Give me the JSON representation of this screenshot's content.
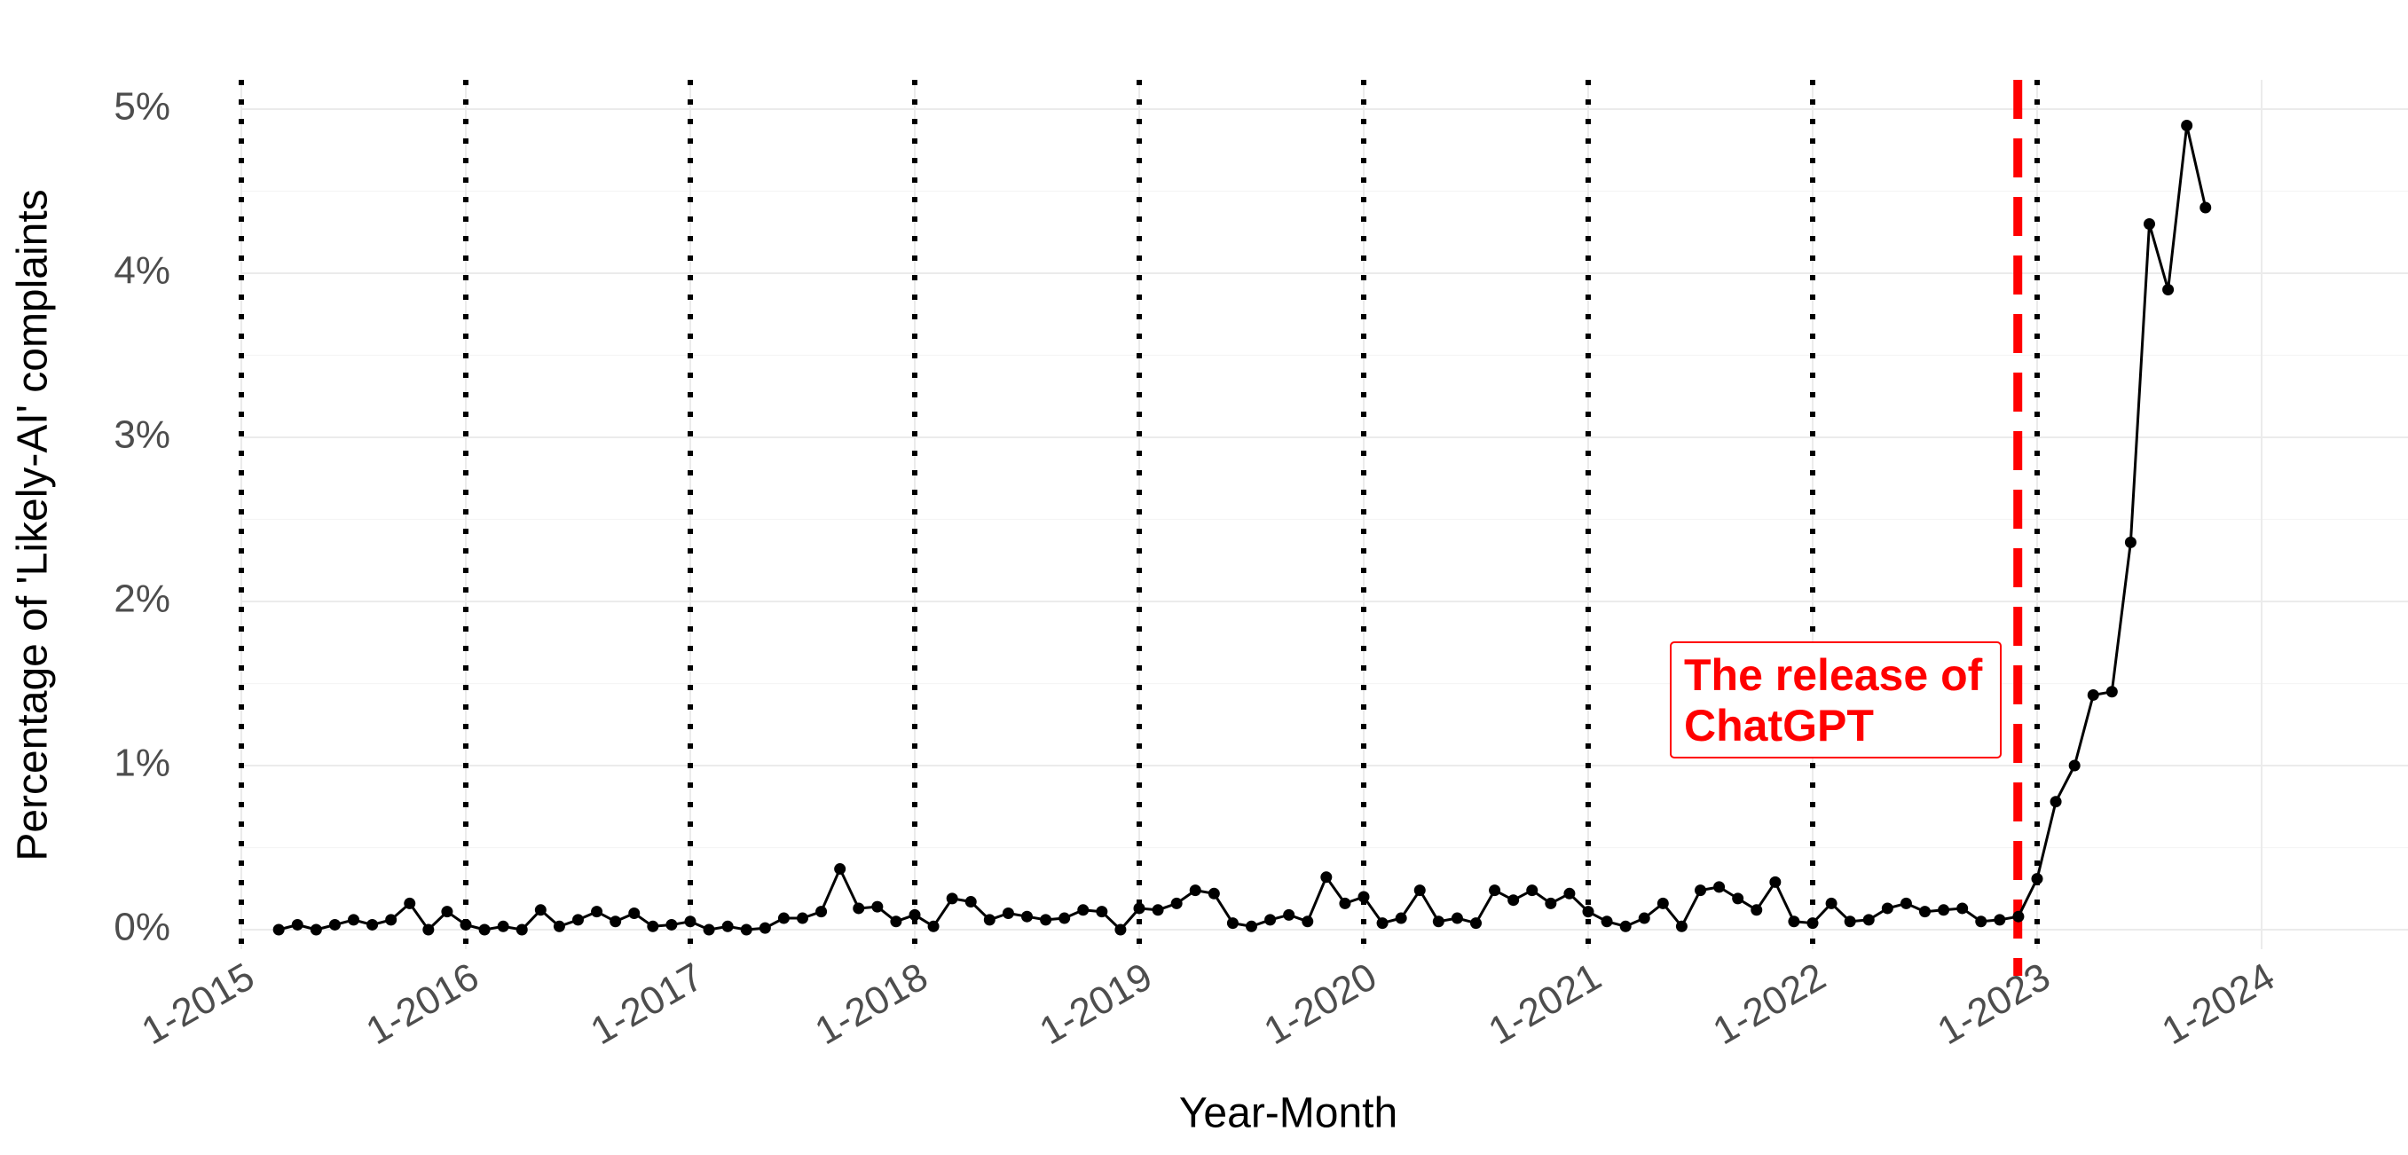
{
  "chart_data": {
    "type": "line",
    "title": "",
    "xlabel": "Year-Month",
    "ylabel": "Percentage of 'Likely-AI' complaints",
    "x_start": "2015-03",
    "x_end": "2023-10",
    "x_ticks": [
      "1-2015",
      "1-2016",
      "1-2017",
      "1-2018",
      "1-2019",
      "1-2020",
      "1-2021",
      "1-2022",
      "1-2023",
      "1-2024"
    ],
    "y_ticks": [
      "0%",
      "1%",
      "2%",
      "3%",
      "4%",
      "5%"
    ],
    "ylim": [
      0,
      5
    ],
    "grid": true,
    "legend": "none",
    "annotation": {
      "lines": [
        "The release of",
        "ChatGPT"
      ],
      "date": "2022-11-30",
      "color": "#ff0000"
    },
    "year_markers": [
      "2015-01",
      "2016-01",
      "2017-01",
      "2018-01",
      "2019-01",
      "2020-01",
      "2021-01",
      "2022-01",
      "2023-01"
    ],
    "series": [
      {
        "color": "#000000",
        "x": [
          "2015-03",
          "2015-04",
          "2015-05",
          "2015-06",
          "2015-07",
          "2015-08",
          "2015-09",
          "2015-10",
          "2015-11",
          "2015-12",
          "2016-01",
          "2016-02",
          "2016-03",
          "2016-04",
          "2016-05",
          "2016-06",
          "2016-07",
          "2016-08",
          "2016-09",
          "2016-10",
          "2016-11",
          "2016-12",
          "2017-01",
          "2017-02",
          "2017-03",
          "2017-04",
          "2017-05",
          "2017-06",
          "2017-07",
          "2017-08",
          "2017-09",
          "2017-10",
          "2017-11",
          "2017-12",
          "2018-01",
          "2018-02",
          "2018-03",
          "2018-04",
          "2018-05",
          "2018-06",
          "2018-07",
          "2018-08",
          "2018-09",
          "2018-10",
          "2018-11",
          "2018-12",
          "2019-01",
          "2019-02",
          "2019-03",
          "2019-04",
          "2019-05",
          "2019-06",
          "2019-07",
          "2019-08",
          "2019-09",
          "2019-10",
          "2019-11",
          "2019-12",
          "2020-01",
          "2020-02",
          "2020-03",
          "2020-04",
          "2020-05",
          "2020-06",
          "2020-07",
          "2020-08",
          "2020-09",
          "2020-10",
          "2020-11",
          "2020-12",
          "2021-01",
          "2021-02",
          "2021-03",
          "2021-04",
          "2021-05",
          "2021-06",
          "2021-07",
          "2021-08",
          "2021-09",
          "2021-10",
          "2021-11",
          "2021-12",
          "2022-01",
          "2022-02",
          "2022-03",
          "2022-04",
          "2022-05",
          "2022-06",
          "2022-07",
          "2022-08",
          "2022-09",
          "2022-10",
          "2022-11",
          "2022-12",
          "2023-01",
          "2023-02",
          "2023-03",
          "2023-04",
          "2023-05",
          "2023-06",
          "2023-07",
          "2023-08",
          "2023-09",
          "2023-10"
        ],
        "y": [
          0.0,
          0.03,
          0.0,
          0.03,
          0.06,
          0.03,
          0.06,
          0.16,
          0.0,
          0.11,
          0.03,
          0.0,
          0.02,
          0.0,
          0.12,
          0.02,
          0.06,
          0.11,
          0.05,
          0.1,
          0.02,
          0.03,
          0.05,
          0.0,
          0.02,
          0.0,
          0.01,
          0.07,
          0.07,
          0.11,
          0.37,
          0.13,
          0.14,
          0.05,
          0.09,
          0.02,
          0.19,
          0.17,
          0.06,
          0.1,
          0.08,
          0.06,
          0.07,
          0.12,
          0.11,
          0.0,
          0.13,
          0.12,
          0.16,
          0.24,
          0.22,
          0.04,
          0.02,
          0.06,
          0.09,
          0.05,
          0.32,
          0.16,
          0.2,
          0.04,
          0.07,
          0.24,
          0.05,
          0.07,
          0.04,
          0.24,
          0.18,
          0.24,
          0.16,
          0.22,
          0.11,
          0.05,
          0.02,
          0.07,
          0.16,
          0.02,
          0.24,
          0.26,
          0.19,
          0.12,
          0.29,
          0.05,
          0.04,
          0.16,
          0.05,
          0.06,
          0.13,
          0.16,
          0.11,
          0.12,
          0.13,
          0.05,
          0.06,
          0.08,
          0.31,
          0.78,
          1.0,
          1.43,
          1.45,
          2.36,
          4.3,
          3.9,
          4.9,
          4.4
        ]
      }
    ]
  }
}
